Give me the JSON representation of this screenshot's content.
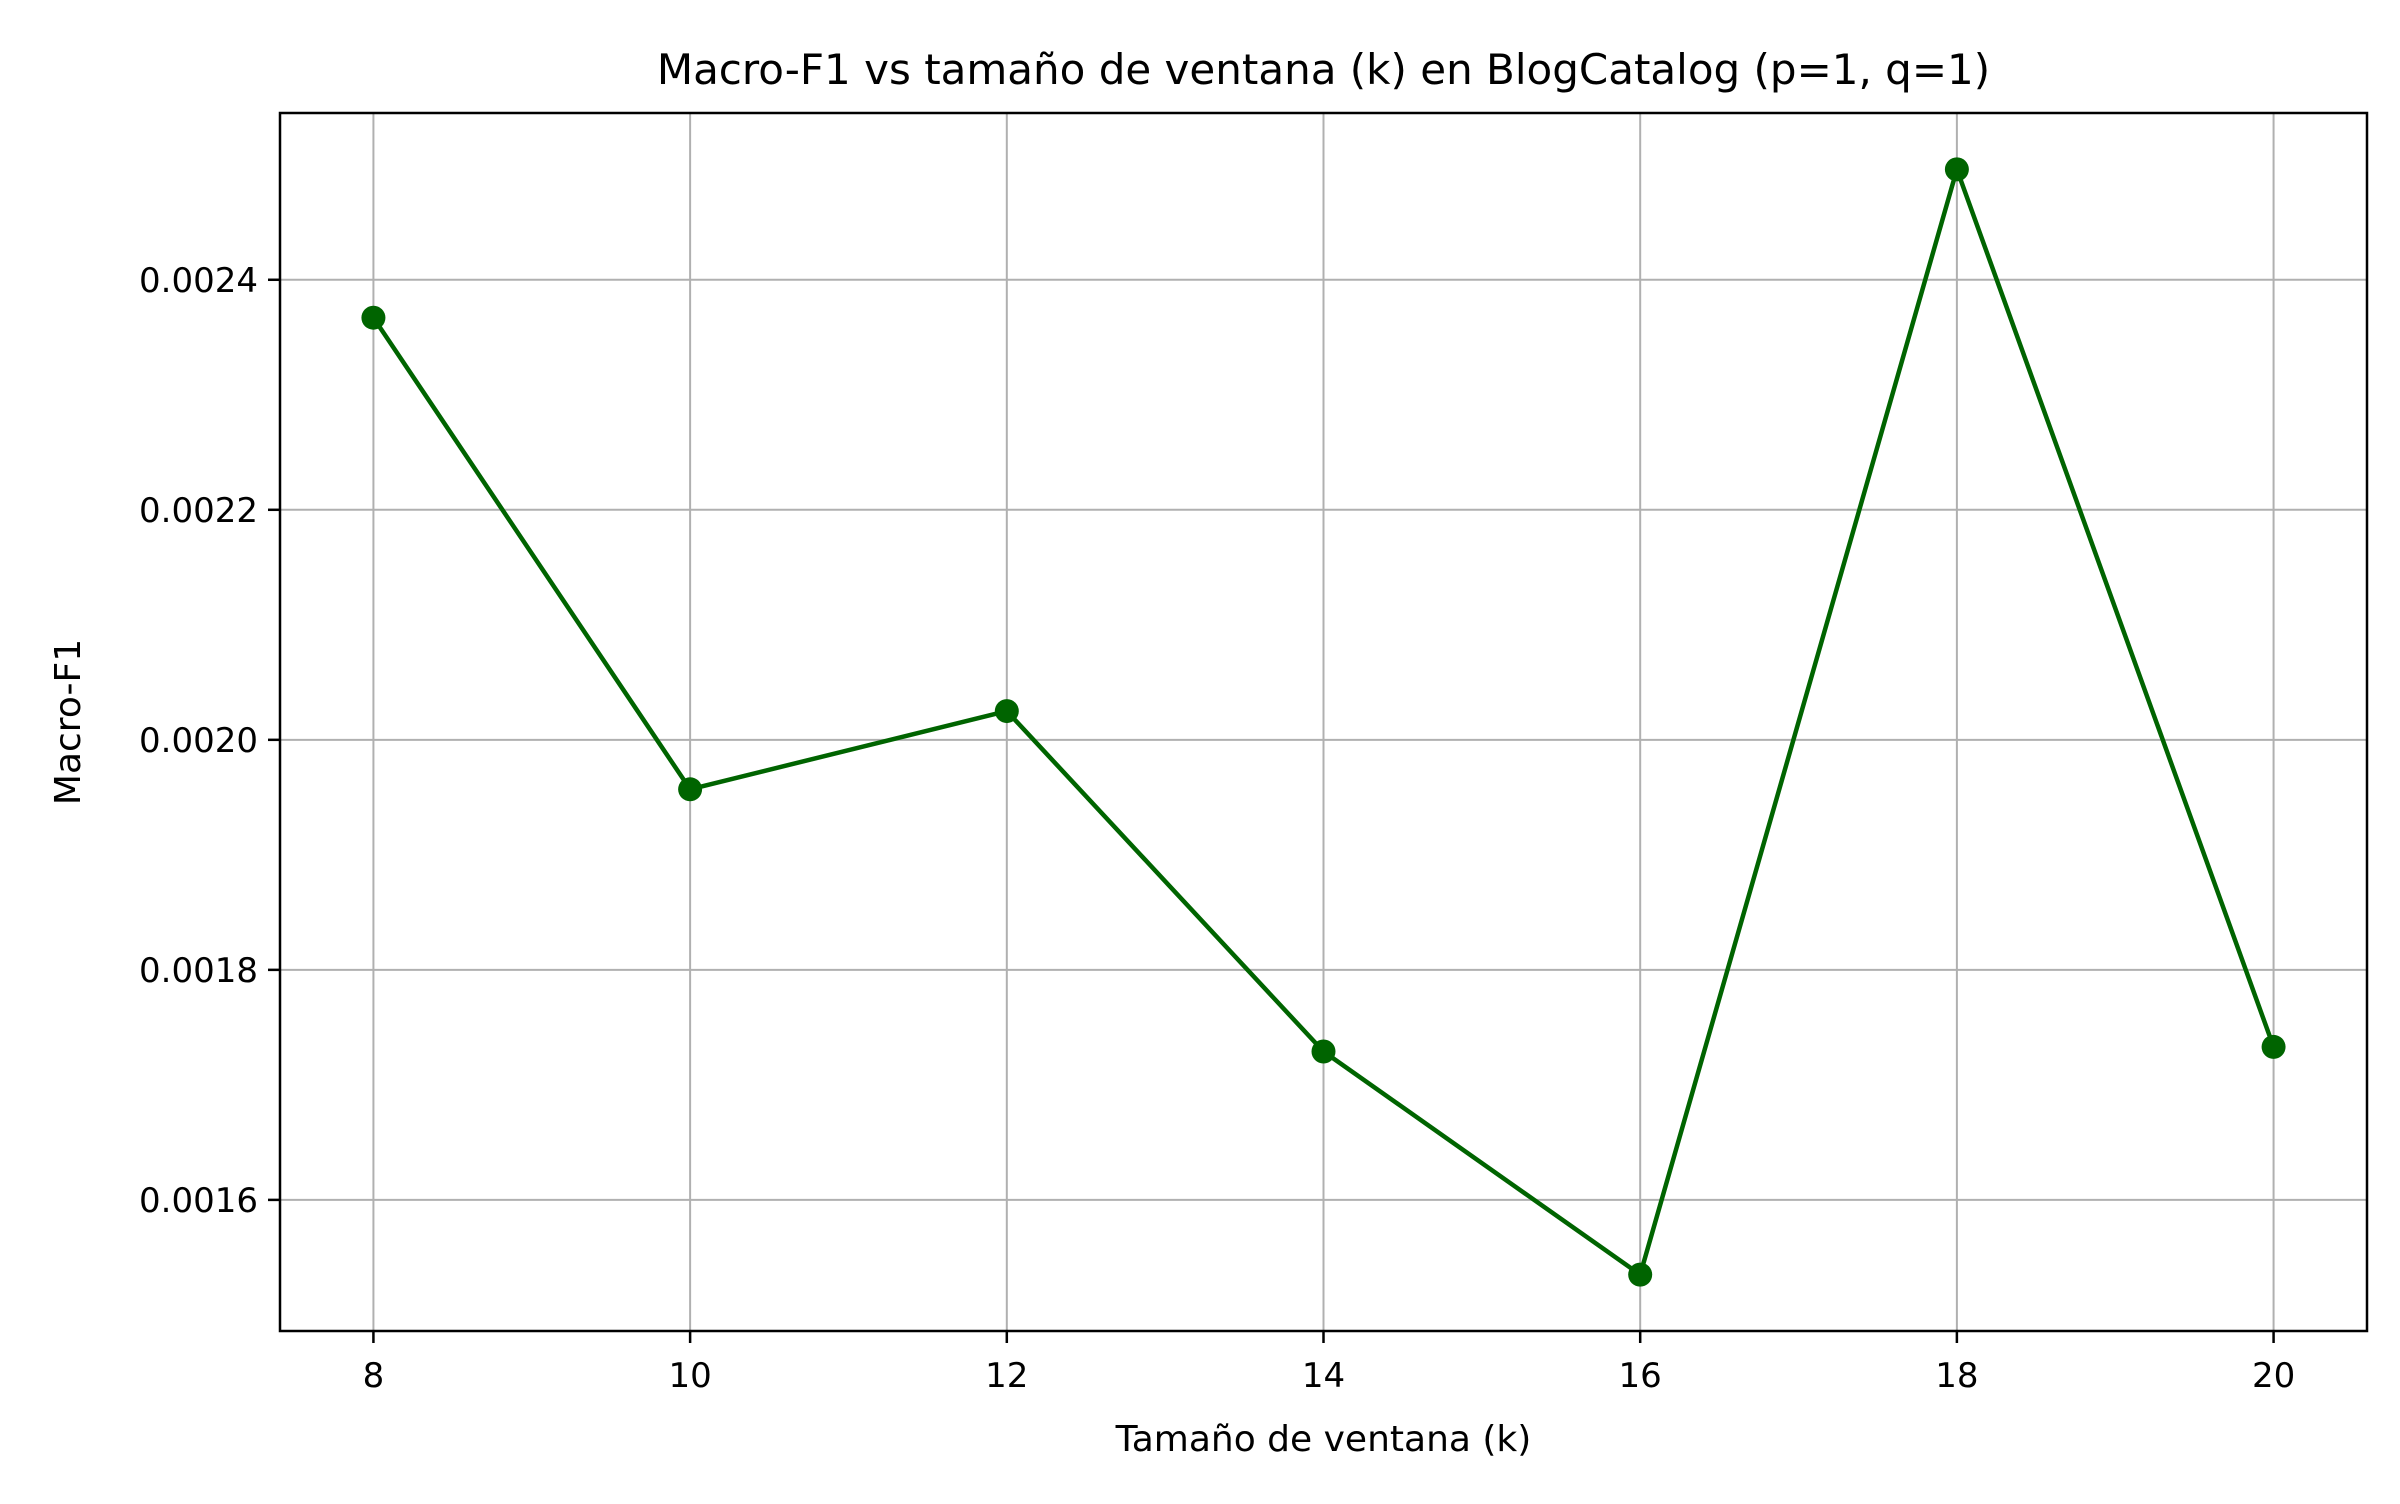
{
  "chart_data": {
    "type": "line",
    "title": "Macro-F1 vs tamaño de ventana (k) en BlogCatalog (p=1, q=1)",
    "xlabel": "Tamaño de ventana (k)",
    "ylabel": "Macro-F1",
    "x": [
      8,
      10,
      12,
      14,
      16,
      18,
      20
    ],
    "series": [
      {
        "values": [
          0.002367,
          0.001957,
          0.002025,
          0.001729,
          0.001535,
          0.002496,
          0.001733
        ],
        "color": "#006400",
        "marker": "circle"
      }
    ],
    "xlim": [
      7.41,
      20.59
    ],
    "ylim": [
      0.001486,
      0.002545
    ],
    "x_ticks": [
      "8",
      "10",
      "12",
      "14",
      "16",
      "18",
      "20"
    ],
    "y_ticks": [
      "0.0016",
      "0.0018",
      "0.0020",
      "0.0022",
      "0.0024"
    ],
    "grid": true,
    "legend": "none"
  }
}
